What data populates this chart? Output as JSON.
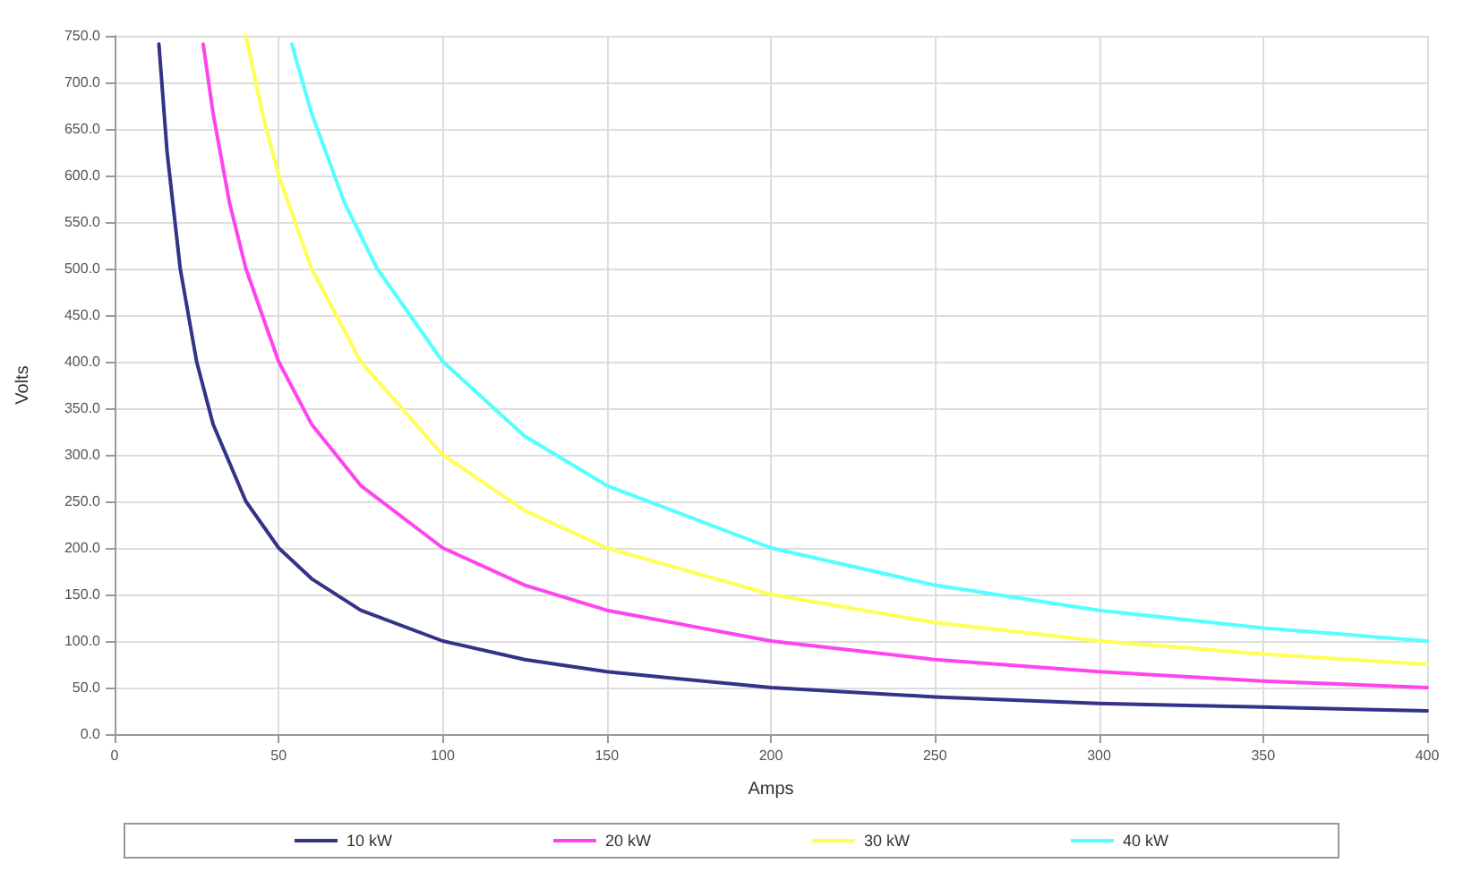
{
  "chart_data": {
    "type": "line",
    "xlabel": "Amps",
    "ylabel": "Volts",
    "xlim": [
      0,
      400
    ],
    "xticks": [
      0,
      50,
      100,
      150,
      200,
      250,
      300,
      350,
      400
    ],
    "ylim": [
      0,
      750
    ],
    "yticks": [
      {
        "value": 0,
        "label": "0.0"
      },
      {
        "value": 50,
        "label": "50.0"
      },
      {
        "value": 100,
        "label": "100.0"
      },
      {
        "value": 150,
        "label": "150.0"
      },
      {
        "value": 200,
        "label": "200.0"
      },
      {
        "value": 250,
        "label": "250.0"
      },
      {
        "value": 300,
        "label": "300.0"
      },
      {
        "value": 350,
        "label": "350.0"
      },
      {
        "value": 400,
        "label": "400.0"
      },
      {
        "value": 450,
        "label": "450.0"
      },
      {
        "value": 500,
        "label": "500.0"
      },
      {
        "value": 550,
        "label": "550.0"
      },
      {
        "value": 600,
        "label": "600.0"
      },
      {
        "value": 650,
        "label": "650.0"
      },
      {
        "value": 700,
        "label": "700.0"
      },
      {
        "value": 750,
        "label": "750.0"
      }
    ],
    "grid": true,
    "legend": "bottom",
    "marker": "none",
    "line_style": "solid",
    "series": [
      {
        "name": "10 kW",
        "color": "#333388",
        "x": [
          13.5,
          16,
          20,
          25,
          30,
          40,
          50,
          60,
          75,
          100,
          125,
          150,
          200,
          250,
          300,
          350,
          400
        ],
        "values": [
          741,
          625,
          500,
          400,
          333,
          250,
          200,
          167,
          133,
          100,
          80,
          67,
          50,
          40,
          33,
          29,
          25
        ]
      },
      {
        "name": "20 kW",
        "color": "#ff44ee",
        "x": [
          27,
          30,
          35,
          40,
          50,
          60,
          75,
          100,
          125,
          150,
          200,
          250,
          300,
          350,
          400
        ],
        "values": [
          741,
          667,
          571,
          500,
          400,
          333,
          267,
          200,
          160,
          133,
          100,
          80,
          67,
          57,
          50
        ]
      },
      {
        "name": "30 kW",
        "color": "#ffff55",
        "x": [
          40,
          45,
          50,
          60,
          75,
          100,
          125,
          150,
          200,
          250,
          300,
          350,
          400
        ],
        "values": [
          750,
          667,
          600,
          500,
          400,
          300,
          240,
          200,
          150,
          120,
          100,
          86,
          75
        ]
      },
      {
        "name": "40 kW",
        "color": "#55ffff",
        "x": [
          54,
          60,
          70,
          80,
          100,
          125,
          150,
          200,
          250,
          300,
          350,
          400
        ],
        "values": [
          741,
          667,
          571,
          500,
          400,
          320,
          267,
          200,
          160,
          133,
          114,
          100
        ]
      }
    ]
  }
}
